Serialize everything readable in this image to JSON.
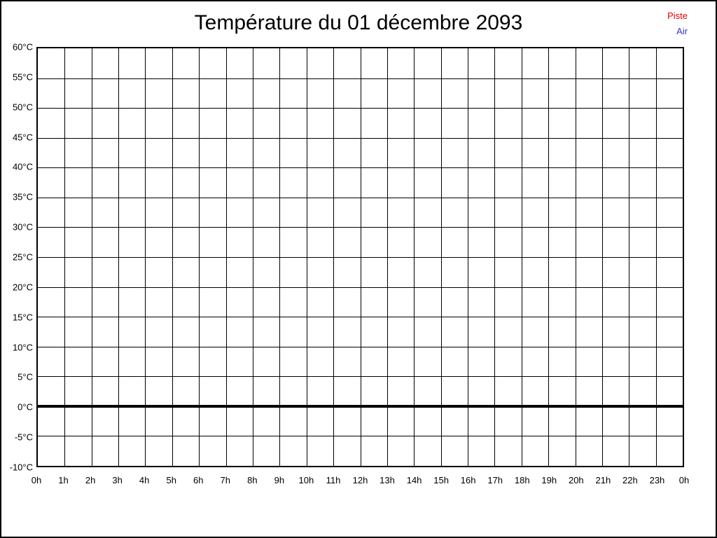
{
  "window": {
    "background": "#ffffff",
    "border_color": "#000000"
  },
  "chart_data": {
    "type": "line",
    "title": "Température du 01 décembre 2093",
    "grid": true,
    "legend_position": "top-right",
    "x": {
      "label": "",
      "tick_labels": [
        "0h",
        "1h",
        "2h",
        "3h",
        "4h",
        "5h",
        "6h",
        "7h",
        "8h",
        "9h",
        "10h",
        "11h",
        "12h",
        "13h",
        "14h",
        "15h",
        "16h",
        "17h",
        "18h",
        "19h",
        "20h",
        "21h",
        "22h",
        "23h",
        "0h"
      ]
    },
    "y": {
      "label": "",
      "unit": "°C",
      "min": -10,
      "max": 60,
      "step": 5,
      "tick_labels": [
        "60°C",
        "55°C",
        "50°C",
        "45°C",
        "40°C",
        "35°C",
        "30°C",
        "25°C",
        "20°C",
        "15°C",
        "10°C",
        "5°C",
        "0°C",
        "-5°C",
        "-10°C"
      ]
    },
    "zero_line": {
      "value": 0,
      "color": "#000000",
      "thickness": 4
    },
    "series": [
      {
        "name": "Piste",
        "color": "#e60000",
        "values": []
      },
      {
        "name": "Air",
        "color": "#3333cc",
        "values": []
      }
    ]
  }
}
